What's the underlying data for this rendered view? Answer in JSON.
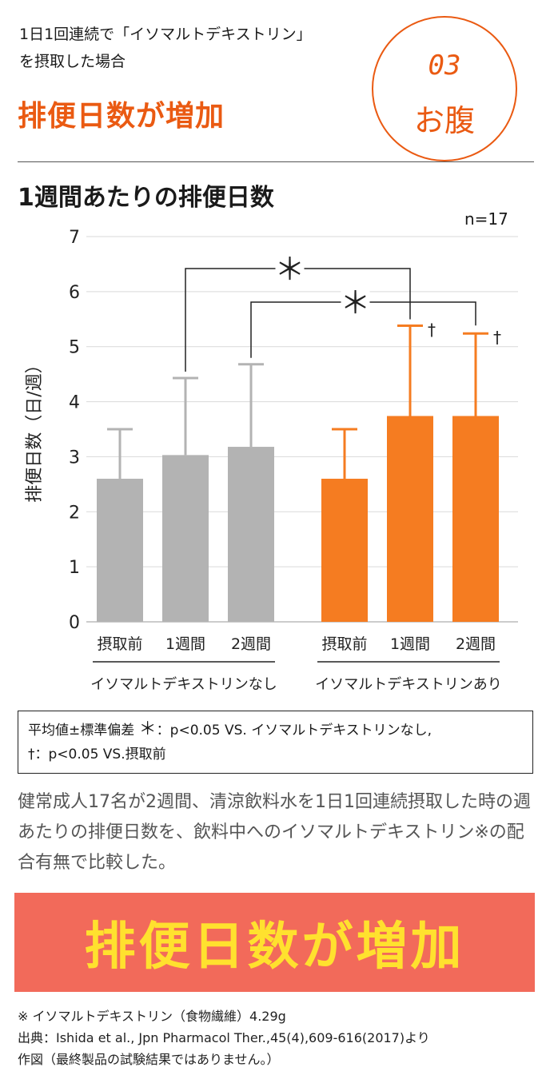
{
  "header": {
    "intro_line1": "1日1回連続で「イソマルトデキストリン」",
    "intro_line2": "を摂取した場合",
    "headline": "排便日数が増加",
    "badge_number": "03",
    "badge_label": "お腹"
  },
  "colors": {
    "accent": "#ea5a12",
    "bar_gray": "#b3b3b3",
    "bar_orange": "#f57c21",
    "banner_bg": "#f26a5a",
    "banner_text": "#ffe12e"
  },
  "chart_data": {
    "type": "bar",
    "title": "1週間あたりの排便日数",
    "sample_size": "n=17",
    "ylabel": "排便日数（日/週）",
    "ylim": [
      0,
      7
    ],
    "yticks": [
      "0",
      "1",
      "2",
      "3",
      "4",
      "5",
      "6",
      "7"
    ],
    "grid": true,
    "groups": [
      {
        "name": "イソマルトデキストリンなし",
        "color": "#b3b3b3",
        "categories": [
          "摂取前",
          "1週間",
          "2週間"
        ],
        "values": [
          2.6,
          3.03,
          3.18
        ],
        "sd": [
          0.9,
          1.4,
          1.5
        ],
        "markers": [
          "",
          "",
          ""
        ]
      },
      {
        "name": "イソマルトデキストリンあり",
        "color": "#f57c21",
        "categories": [
          "摂取前",
          "1週間",
          "2週間"
        ],
        "values": [
          2.6,
          3.74,
          3.74
        ],
        "sd": [
          0.9,
          1.64,
          1.5
        ],
        "markers": [
          "",
          "†",
          "†"
        ]
      }
    ],
    "significance": [
      {
        "from": "なし・1週間",
        "to": "あり・1週間",
        "mark": "＊"
      },
      {
        "from": "なし・2週間",
        "to": "あり・2週間",
        "mark": "＊"
      }
    ]
  },
  "legend": {
    "line1_prefix": "平均値",
    "line1_pm": "±",
    "line1_middle": "標準偏差",
    "line1_star": "＊",
    "line1_rest": "：p<0.05 VS. イソマルトデキストリンなし,",
    "line2_dagger": "†",
    "line2_rest": "：p<0.05 VS.摂取前"
  },
  "description": "健常成人17名が2週間、清涼飲料水を1日1回連続摂取した時の週あたりの排便日数を、飲料中へのイソマルトデキストリン※の配合有無で比較した。",
  "banner": {
    "text": "排便日数が増加"
  },
  "notes": {
    "line1": "※ イソマルトデキストリン（食物繊維）4.29g",
    "line2": "出典：Ishida et al., Jpn Pharmacol Ther.,45(4),609-616(2017)より",
    "line3": "作図（最終製品の試験結果ではありません。）"
  }
}
